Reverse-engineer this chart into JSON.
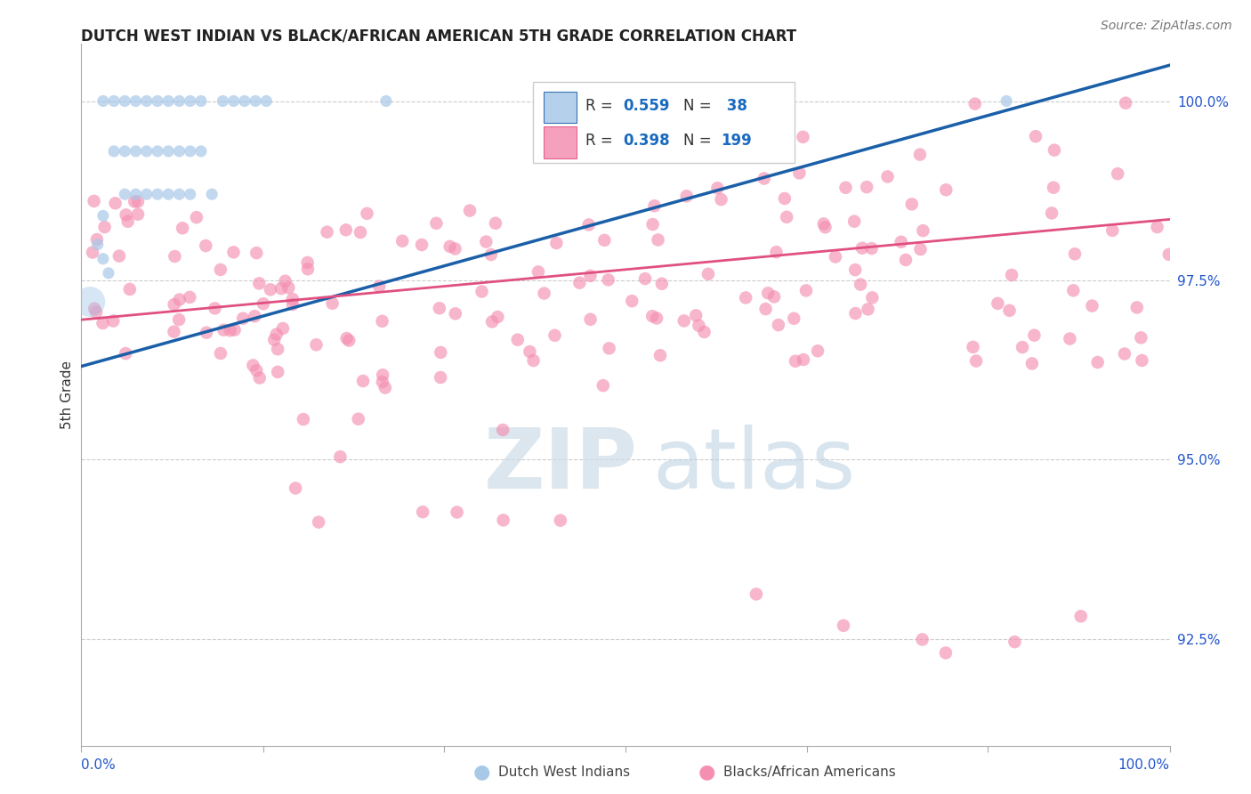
{
  "title": "DUTCH WEST INDIAN VS BLACK/AFRICAN AMERICAN 5TH GRADE CORRELATION CHART",
  "source": "Source: ZipAtlas.com",
  "ylabel": "5th Grade",
  "ylabel_right_labels": [
    "100.0%",
    "97.5%",
    "95.0%",
    "92.5%"
  ],
  "ylabel_right_values": [
    1.0,
    0.975,
    0.95,
    0.925
  ],
  "xlim": [
    0.0,
    1.0
  ],
  "ylim": [
    0.91,
    1.008
  ],
  "blue_color": "#a8c8e8",
  "pink_color": "#f48fb1",
  "blue_line_color": "#1a5fa8",
  "pink_line_color": "#e05080",
  "legend_r_color": "#1a6abf",
  "legend_n_color": "#1a6abf",
  "grid_color": "#cccccc",
  "background_color": "#ffffff",
  "blue_line_x0": 0.0,
  "blue_line_x1": 1.0,
  "blue_line_y0": 0.963,
  "blue_line_y1": 1.005,
  "pink_line_x0": 0.0,
  "pink_line_x1": 1.0,
  "pink_line_y0": 0.9695,
  "pink_line_y1": 0.9835,
  "watermark_zip_color": "#cddce8",
  "watermark_atlas_color": "#b8cfe0"
}
